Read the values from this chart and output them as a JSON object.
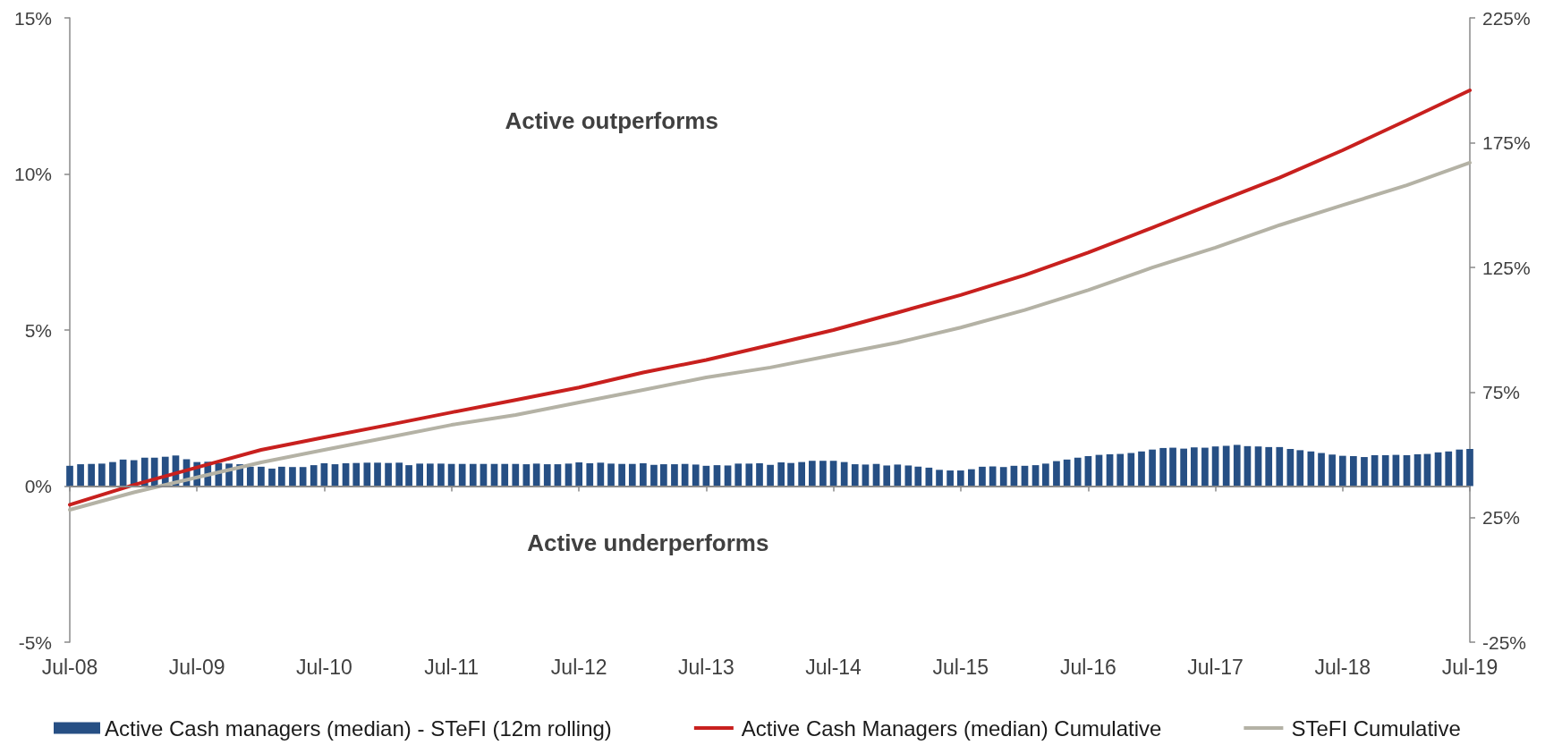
{
  "chart_data": {
    "type": "bar",
    "annotations": [
      "Active outperforms",
      "Active underperforms"
    ],
    "x": [
      "2008-07",
      "2008-08",
      "2008-09",
      "2008-10",
      "2008-11",
      "2008-12",
      "2009-01",
      "2009-02",
      "2009-03",
      "2009-04",
      "2009-05",
      "2009-06",
      "2009-07",
      "2009-08",
      "2009-09",
      "2009-10",
      "2009-11",
      "2009-12",
      "2010-01",
      "2010-02",
      "2010-03",
      "2010-04",
      "2010-05",
      "2010-06",
      "2010-07",
      "2010-08",
      "2010-09",
      "2010-10",
      "2010-11",
      "2010-12",
      "2011-01",
      "2011-02",
      "2011-03",
      "2011-04",
      "2011-05",
      "2011-06",
      "2011-07",
      "2011-08",
      "2011-09",
      "2011-10",
      "2011-11",
      "2011-12",
      "2012-01",
      "2012-02",
      "2012-03",
      "2012-04",
      "2012-05",
      "2012-06",
      "2012-07",
      "2012-08",
      "2012-09",
      "2012-10",
      "2012-11",
      "2012-12",
      "2013-01",
      "2013-02",
      "2013-03",
      "2013-04",
      "2013-05",
      "2013-06",
      "2013-07",
      "2013-08",
      "2013-09",
      "2013-10",
      "2013-11",
      "2013-12",
      "2014-01",
      "2014-02",
      "2014-03",
      "2014-04",
      "2014-05",
      "2014-06",
      "2014-07",
      "2014-08",
      "2014-09",
      "2014-10",
      "2014-11",
      "2014-12",
      "2015-01",
      "2015-02",
      "2015-03",
      "2015-04",
      "2015-05",
      "2015-06",
      "2015-07",
      "2015-08",
      "2015-09",
      "2015-10",
      "2015-11",
      "2015-12",
      "2016-01",
      "2016-02",
      "2016-03",
      "2016-04",
      "2016-05",
      "2016-06",
      "2016-07",
      "2016-08",
      "2016-09",
      "2016-10",
      "2016-11",
      "2016-12",
      "2017-01",
      "2017-02",
      "2017-03",
      "2017-04",
      "2017-05",
      "2017-06",
      "2017-07",
      "2017-08",
      "2017-09",
      "2017-10",
      "2017-11",
      "2017-12",
      "2018-01",
      "2018-02",
      "2018-03",
      "2018-04",
      "2018-05",
      "2018-06",
      "2018-07",
      "2018-08",
      "2018-09",
      "2018-10",
      "2018-11",
      "2018-12",
      "2019-01",
      "2019-02",
      "2019-03",
      "2019-04",
      "2019-05",
      "2019-06",
      "2019-07"
    ],
    "series": [
      {
        "name": "Active Cash managers (median) - STeFI (12m rolling)",
        "color": "#264f84",
        "values": [
          0.65,
          0.7,
          0.71,
          0.72,
          0.77,
          0.85,
          0.83,
          0.91,
          0.91,
          0.94,
          0.98,
          0.86,
          0.77,
          0.78,
          0.74,
          0.72,
          0.7,
          0.62,
          0.62,
          0.56,
          0.62,
          0.61,
          0.61,
          0.67,
          0.73,
          0.7,
          0.73,
          0.74,
          0.75,
          0.75,
          0.74,
          0.75,
          0.67,
          0.72,
          0.72,
          0.72,
          0.71,
          0.71,
          0.71,
          0.71,
          0.71,
          0.71,
          0.71,
          0.7,
          0.72,
          0.7,
          0.7,
          0.72,
          0.76,
          0.73,
          0.75,
          0.72,
          0.71,
          0.71,
          0.73,
          0.68,
          0.7,
          0.7,
          0.71,
          0.69,
          0.65,
          0.67,
          0.66,
          0.72,
          0.72,
          0.73,
          0.68,
          0.76,
          0.74,
          0.77,
          0.81,
          0.81,
          0.81,
          0.77,
          0.7,
          0.69,
          0.71,
          0.66,
          0.69,
          0.66,
          0.62,
          0.59,
          0.52,
          0.5,
          0.5,
          0.54,
          0.62,
          0.63,
          0.61,
          0.65,
          0.65,
          0.67,
          0.72,
          0.8,
          0.85,
          0.91,
          0.96,
          1.0,
          1.02,
          1.03,
          1.06,
          1.11,
          1.17,
          1.22,
          1.23,
          1.2,
          1.24,
          1.23,
          1.27,
          1.29,
          1.32,
          1.28,
          1.27,
          1.25,
          1.25,
          1.19,
          1.15,
          1.11,
          1.06,
          1.01,
          0.97,
          0.96,
          0.93,
          0.99,
          0.99,
          1.0,
          0.99,
          1.02,
          1.03,
          1.08,
          1.11,
          1.17,
          1.19
        ]
      },
      {
        "name": "Active Cash Managers (median) Cumulative",
        "type": "line",
        "axis": "y2",
        "color": "#c8201e",
        "x": [
          "2008-07",
          "2009-01",
          "2009-07",
          "2010-01",
          "2010-07",
          "2011-01",
          "2011-07",
          "2012-01",
          "2012-07",
          "2013-01",
          "2013-07",
          "2014-01",
          "2014-07",
          "2015-01",
          "2015-07",
          "2016-01",
          "2016-07",
          "2017-01",
          "2017-07",
          "2018-01",
          "2018-07",
          "2019-01",
          "2019-07"
        ],
        "values": [
          30,
          38,
          45,
          52,
          57,
          62,
          67,
          72,
          77,
          83,
          88,
          94,
          100,
          107,
          114,
          122,
          131,
          141,
          151,
          161,
          172,
          184,
          196
        ]
      },
      {
        "name": "STeFI Cumulative",
        "type": "line",
        "axis": "y2",
        "color": "#b4b2a5",
        "x": [
          "2008-07",
          "2009-01",
          "2009-07",
          "2010-01",
          "2010-07",
          "2011-01",
          "2011-07",
          "2012-01",
          "2012-07",
          "2013-01",
          "2013-07",
          "2014-01",
          "2014-07",
          "2015-01",
          "2015-07",
          "2016-01",
          "2016-07",
          "2017-01",
          "2017-07",
          "2018-01",
          "2018-07",
          "2019-01",
          "2019-07"
        ],
        "values": [
          28,
          35,
          41,
          47,
          52,
          57,
          62,
          66,
          71,
          76,
          81,
          85,
          90,
          95,
          101,
          108,
          116,
          125,
          133,
          142,
          150,
          158,
          167
        ]
      }
    ],
    "ref_lines": [
      {
        "axis": "y",
        "value": 0,
        "color": "#8a8a8a"
      }
    ],
    "xlim": [
      "2008-07",
      "2019-07"
    ],
    "xticks": [
      {
        "value": "2008-07",
        "label": "Jul-08"
      },
      {
        "value": "2009-07",
        "label": "Jul-09"
      },
      {
        "value": "2010-07",
        "label": "Jul-10"
      },
      {
        "value": "2011-07",
        "label": "Jul-11"
      },
      {
        "value": "2012-07",
        "label": "Jul-12"
      },
      {
        "value": "2013-07",
        "label": "Jul-13"
      },
      {
        "value": "2014-07",
        "label": "Jul-14"
      },
      {
        "value": "2015-07",
        "label": "Jul-15"
      },
      {
        "value": "2016-07",
        "label": "Jul-16"
      },
      {
        "value": "2017-07",
        "label": "Jul-17"
      },
      {
        "value": "2018-07",
        "label": "Jul-18"
      },
      {
        "value": "2019-07",
        "label": "Jul-19"
      }
    ],
    "ylim": [
      -5,
      15
    ],
    "yticks": [
      {
        "value": -5,
        "label": "-5%"
      },
      {
        "value": 0,
        "label": "0%"
      },
      {
        "value": 5,
        "label": "5%"
      },
      {
        "value": 10,
        "label": "10%"
      },
      {
        "value": 15,
        "label": "15%"
      }
    ],
    "y2lim": [
      -25,
      225
    ],
    "y2ticks": [
      {
        "value": -25,
        "label": "-25%"
      },
      {
        "value": 25,
        "label": "25%"
      },
      {
        "value": 75,
        "label": "75%"
      },
      {
        "value": 125,
        "label": "125%"
      },
      {
        "value": 175,
        "label": "175%"
      },
      {
        "value": 225,
        "label": "225%"
      }
    ],
    "grid": false,
    "legend": "bottom",
    "marker": "none"
  }
}
